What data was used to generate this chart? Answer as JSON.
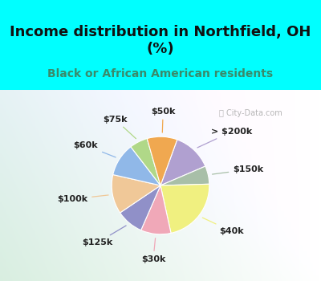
{
  "title": "Income distribution in Northfield, OH\n(%)",
  "subtitle": "Black or African American residents",
  "title_color": "#111111",
  "subtitle_color": "#3a8a6a",
  "bg_cyan": "#00ffff",
  "watermark": "City-Data.com",
  "labels": [
    "> $200k",
    "$150k",
    "$40k",
    "$30k",
    "$125k",
    "$100k",
    "$60k",
    "$75k",
    "$50k"
  ],
  "values": [
    13,
    6,
    22,
    10,
    9,
    13,
    11,
    6,
    10
  ],
  "colors": [
    "#b0a0d0",
    "#a8bfa8",
    "#f0f080",
    "#f0a8b8",
    "#9090c8",
    "#f0c898",
    "#90b8e8",
    "#b0d888",
    "#f0a850"
  ],
  "startangle": 70,
  "figsize": [
    4.0,
    3.5
  ],
  "dpi": 100,
  "title_fontsize": 13,
  "subtitle_fontsize": 10,
  "label_fontsize": 8
}
